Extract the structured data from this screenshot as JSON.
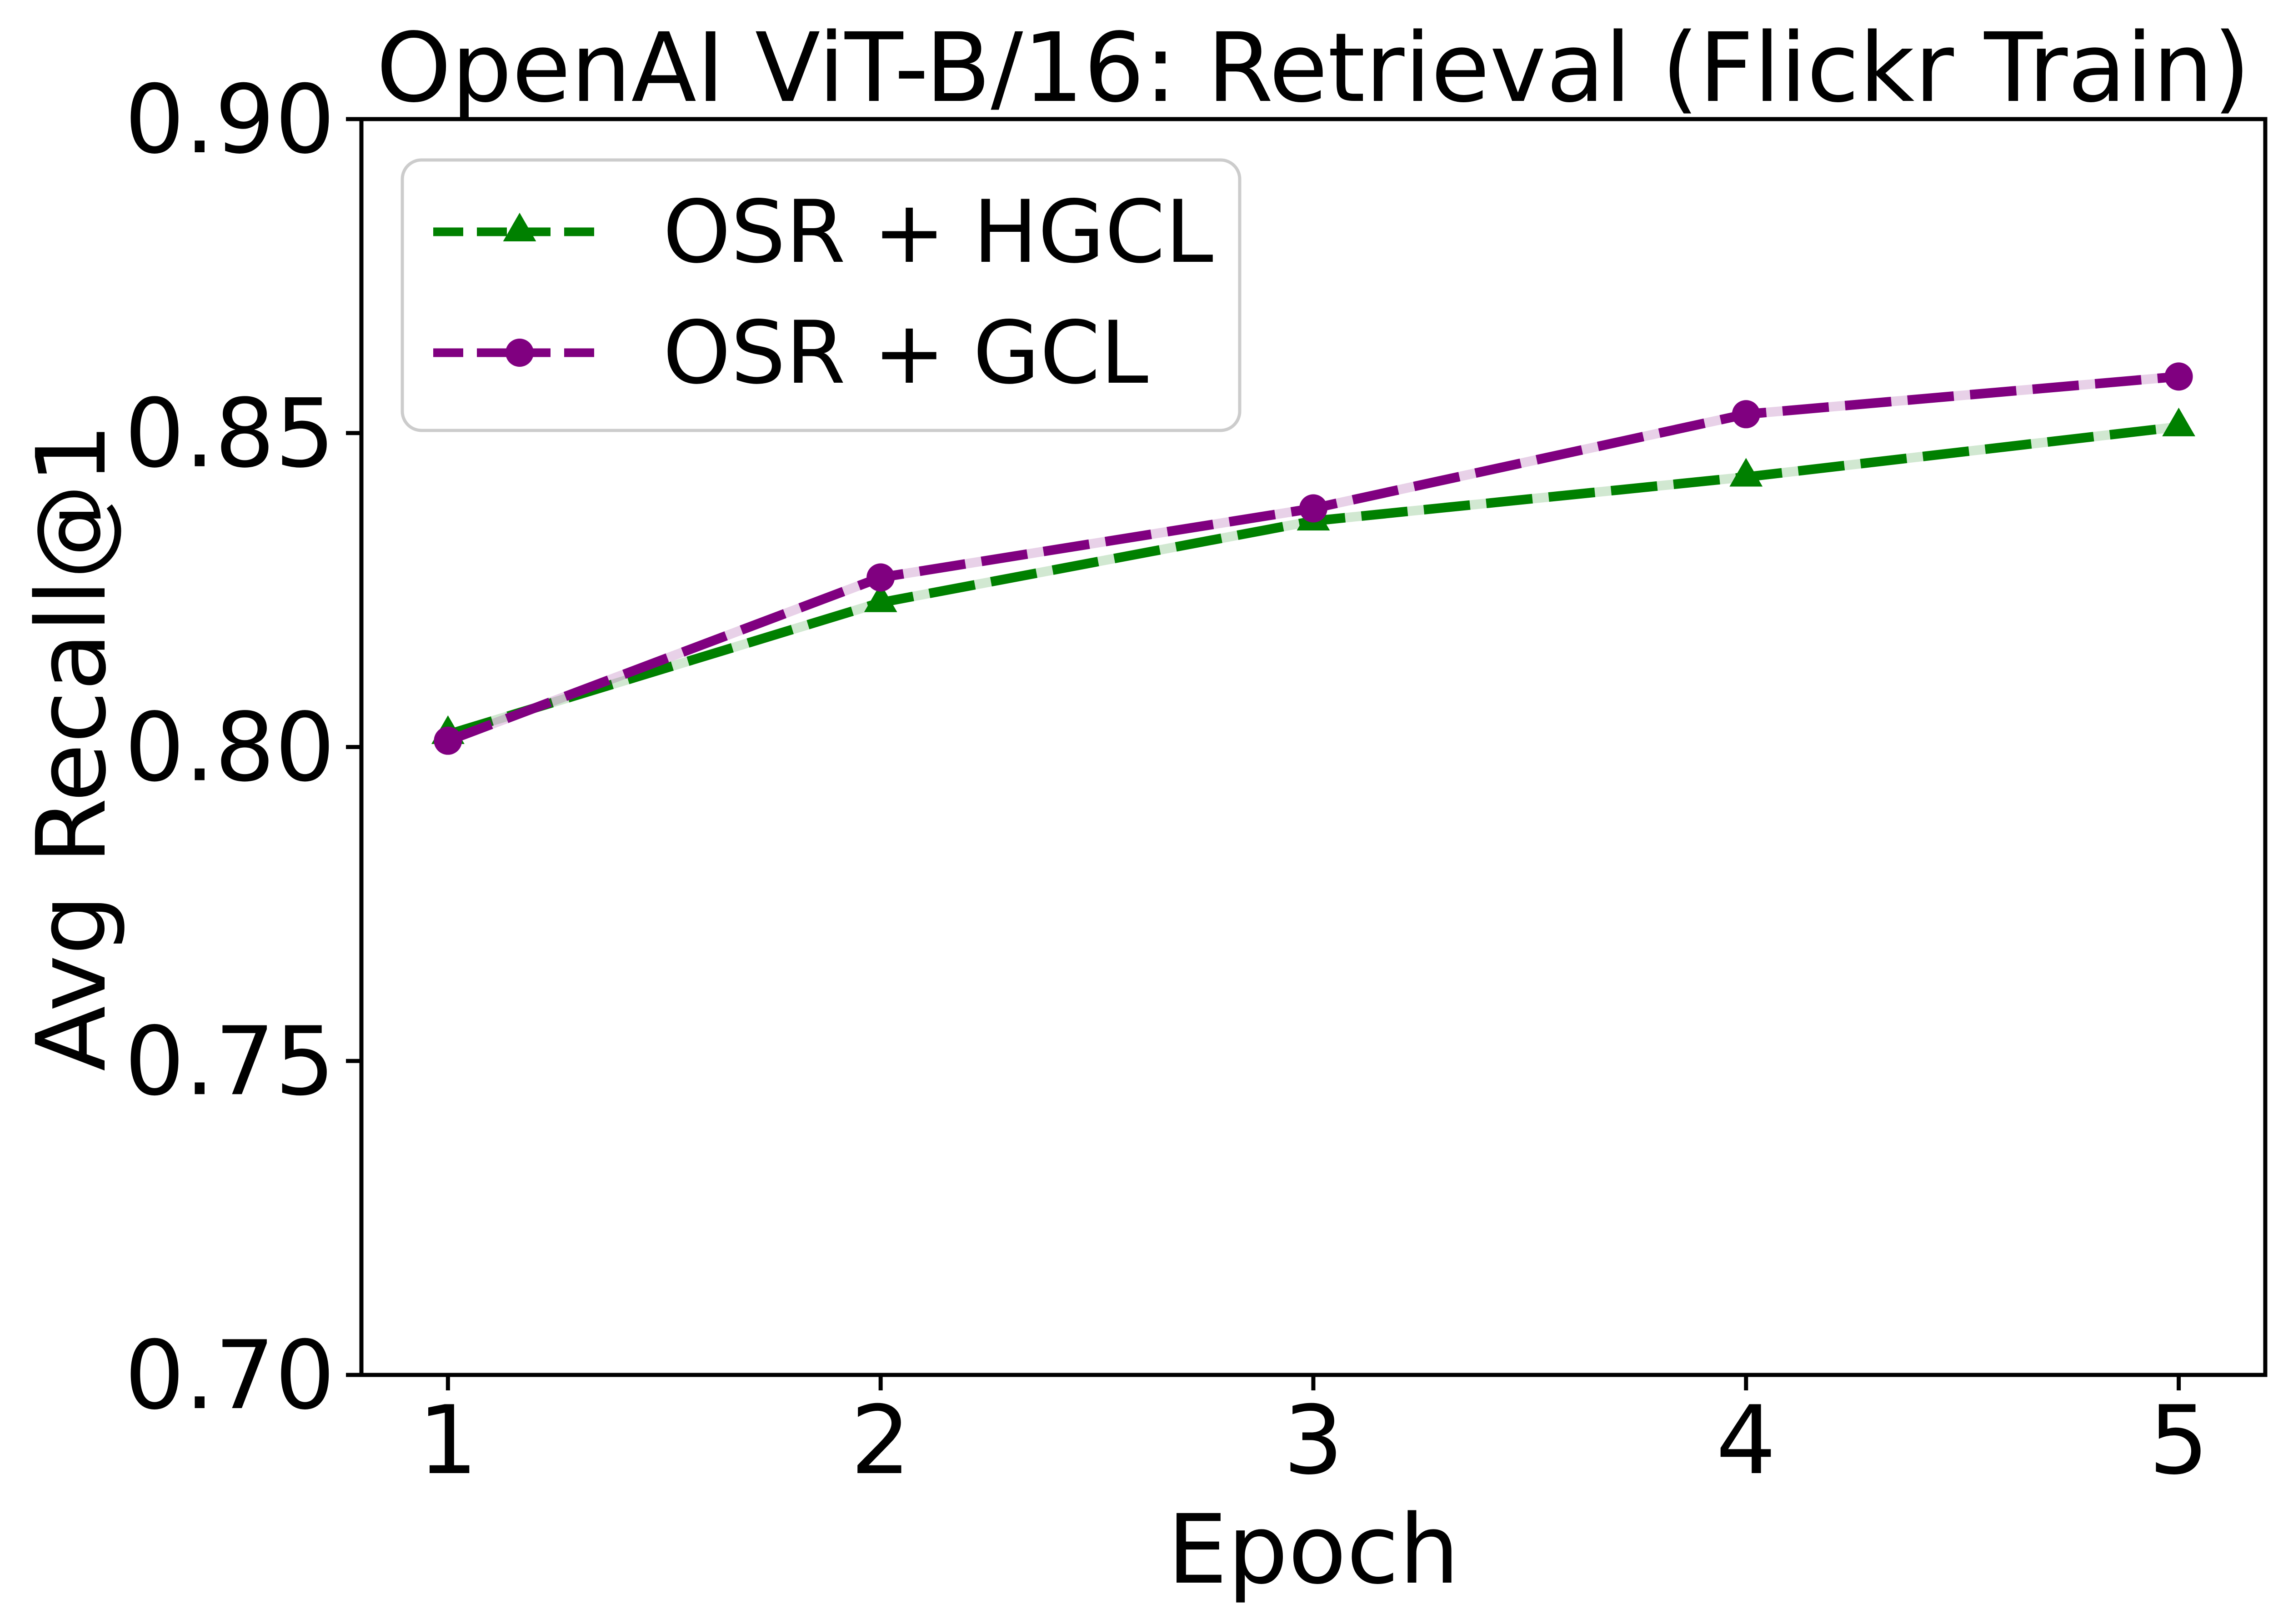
{
  "chart_data": {
    "type": "line",
    "title": "OpenAI ViT-B/16: Retrieval (Flickr Train)",
    "xlabel": "Epoch",
    "ylabel": "Avg Recall@1",
    "x": [
      1,
      2,
      3,
      4,
      5
    ],
    "xticks": [
      "1",
      "2",
      "3",
      "4",
      "5"
    ],
    "yticks": [
      "0.70",
      "0.75",
      "0.80",
      "0.85",
      "0.90"
    ],
    "ytick_values": [
      0.7,
      0.75,
      0.8,
      0.85,
      0.9
    ],
    "xlim": [
      0.8,
      5.2
    ],
    "ylim": [
      0.7,
      0.9
    ],
    "grid": false,
    "legend_position": "upper left",
    "line_style": "dashed",
    "series": [
      {
        "name": "OSR + HGCL",
        "color": "#008000",
        "marker": "triangle",
        "values": [
          0.802,
          0.823,
          0.836,
          0.843,
          0.851
        ]
      },
      {
        "name": "OSR + GCL",
        "color": "#800080",
        "marker": "circle",
        "values": [
          0.801,
          0.827,
          0.838,
          0.853,
          0.859
        ]
      }
    ]
  }
}
